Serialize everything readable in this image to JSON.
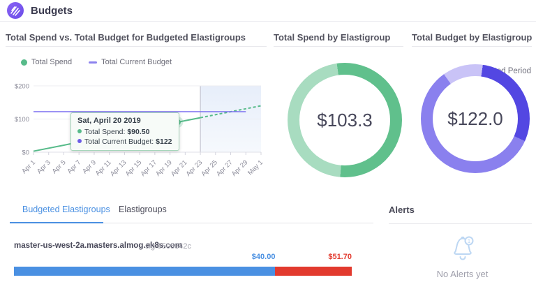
{
  "header": {
    "title": "Budgets",
    "logo": "spotinst-logo"
  },
  "colors": {
    "spend_green": "#57bb8a",
    "spend_green_light": "#a8dcc0",
    "budget_purple": "#7b6ff0",
    "donut_purple_dark": "#5347e2",
    "donut_purple_mid": "#8a80ee",
    "donut_purple_light": "#c9c3f7",
    "accent_blue": "#4a90e2",
    "over_budget_red": "#e23a2e"
  },
  "chart_section": {
    "title": "Total Spend vs. Total Budget for Budgeted Elastigroups",
    "legend": [
      {
        "label": "Total Spend",
        "marker": "dot",
        "color": "#57bb8a"
      },
      {
        "label": "Total Current Budget",
        "marker": "dash",
        "color": "#8c82ee"
      }
    ],
    "predicted_label": "Predicted Period",
    "tooltip": {
      "title": "Sat, April 20 2019",
      "rows": [
        {
          "label": "Total Spend:",
          "value": "$90.50",
          "color": "#57bb8a"
        },
        {
          "label": "Total Current Budget:",
          "value": "$122",
          "color": "#6c5ce7"
        }
      ]
    },
    "chart_data": {
      "type": "line",
      "title": "Total Spend vs. Total Budget for Budgeted Elastigroups",
      "x_tick_labels": [
        "Apr 1",
        "Apr 3",
        "Apr 5",
        "Apr 7",
        "Apr 9",
        "Apr 11",
        "Apr 13",
        "Apr 15",
        "Apr 17",
        "Apr 19",
        "Apr 21",
        "Apr 23",
        "Apr 25",
        "Apr 27",
        "Apr 29",
        "May 1"
      ],
      "x_domain_days": [
        0,
        30
      ],
      "ylim": [
        0,
        200
      ],
      "y_ticks": [
        0,
        100,
        200
      ],
      "y_tick_labels": [
        "$0",
        "$100",
        "$200"
      ],
      "predicted_period": {
        "label": "Predicted Period",
        "start_day": 22,
        "end_day": 30
      },
      "series": [
        {
          "name": "Total Spend",
          "color": "#57bb8a",
          "style": "solid",
          "width": 2,
          "points": [
            [
              0,
              3
            ],
            [
              4,
              21
            ],
            [
              9,
              45
            ],
            [
              14,
              67
            ],
            [
              19,
              90.5
            ],
            [
              22,
              104
            ]
          ]
        },
        {
          "name": "Total Spend (predicted)",
          "color": "#57bb8a",
          "style": "dashed",
          "width": 2,
          "points": [
            [
              22,
              104
            ],
            [
              30,
              140
            ]
          ]
        },
        {
          "name": "Total Current Budget",
          "color": "#7b6ff0",
          "style": "solid",
          "width": 1.5,
          "points": [
            [
              0,
              122
            ],
            [
              28,
              122
            ]
          ]
        }
      ],
      "highlight_point": {
        "series": "Total Spend",
        "day": 19,
        "value": 90.5,
        "date": "Sat, April 20 2019"
      }
    }
  },
  "spend_donut_section": {
    "title": "Total Spend by Elastigroup",
    "center_value": "$103.3",
    "chart_data": {
      "type": "pie",
      "total_label": "$103.3",
      "start_angle_deg": -8,
      "segments": [
        {
          "pct": 53.5,
          "color": "#60c08c"
        },
        {
          "pct": 46.5,
          "color": "#a8dcc0"
        }
      ]
    }
  },
  "budget_donut_section": {
    "title": "Total Budget by Elastigroup",
    "center_value": "$122.0",
    "chart_data": {
      "type": "pie",
      "total_label": "$122.0",
      "start_angle_deg": 8,
      "segments": [
        {
          "pct": 29.5,
          "color": "#5347e2"
        },
        {
          "pct": 58.5,
          "color": "#8a80ee"
        },
        {
          "pct": 12,
          "color": "#c9c3f7"
        }
      ]
    }
  },
  "tabs": [
    {
      "label": "Budgeted Elastigroups",
      "active": true
    },
    {
      "label": "Elastigroups",
      "active": false
    }
  ],
  "budget_row": {
    "name": "master-us-west-2a.masters.almog.ek8s.com",
    "sig": "sig-5505342c",
    "budget_value": 40,
    "spend_value": 51.7,
    "budget_label": "$40.00",
    "spend_label": "$51.70"
  },
  "alerts": {
    "title": "Alerts",
    "empty_text": "No Alerts yet"
  }
}
